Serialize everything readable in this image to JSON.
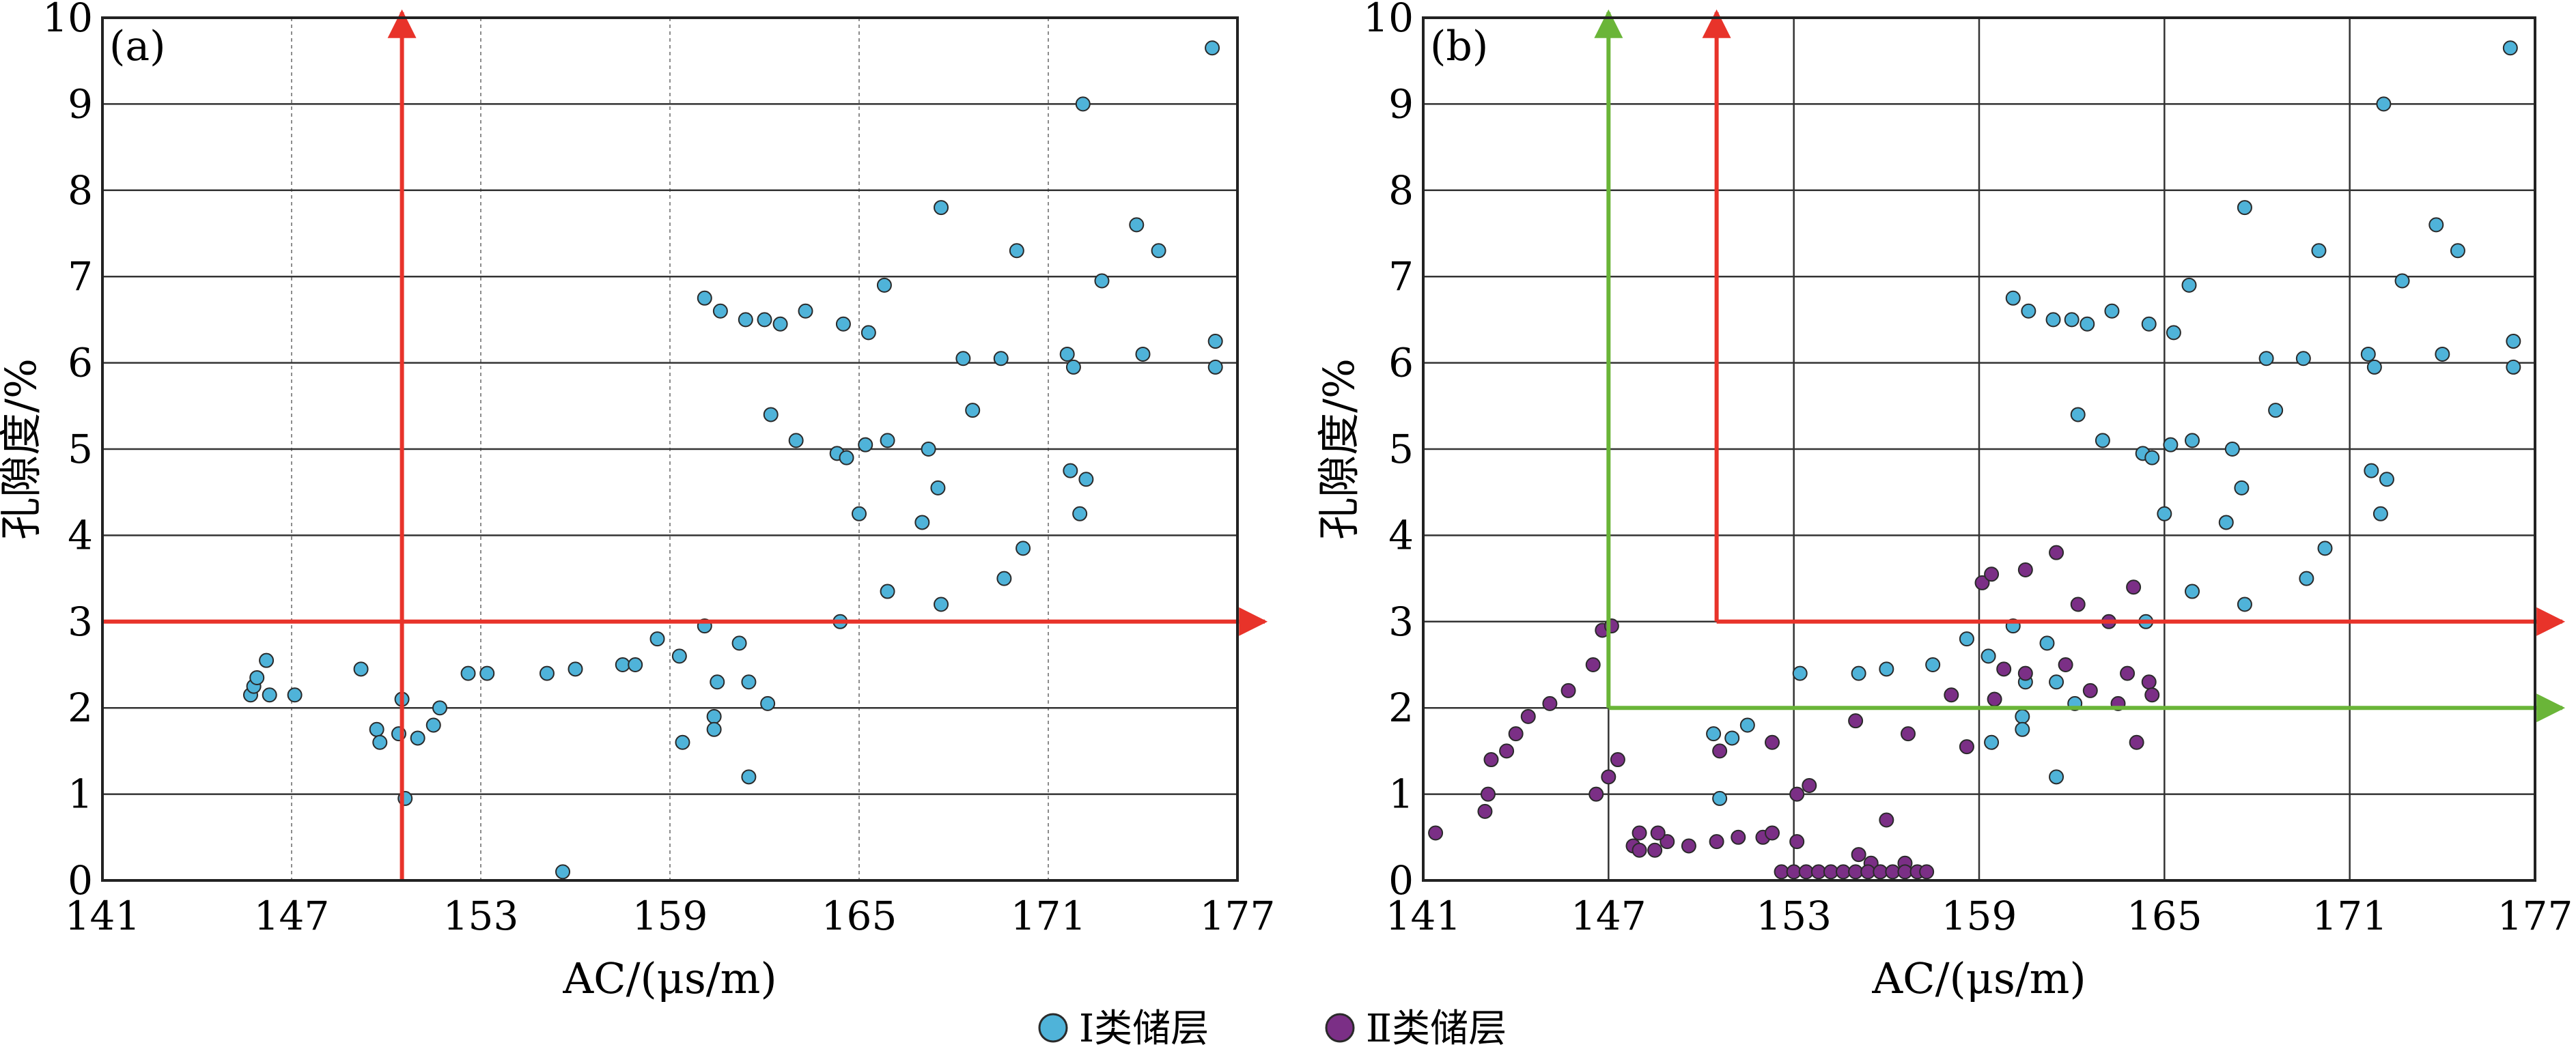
{
  "colors": {
    "type1_fill": "#4fb3d9",
    "type2_fill": "#7b2f86",
    "point_edge": "#2a2a2a",
    "red_line": "#e8332a",
    "green_line": "#6ab538",
    "grid_major": "#333333",
    "grid_minor": "#8c8c8c"
  },
  "legend": {
    "type1_label": "Ⅰ类储层",
    "type2_label": "Ⅱ类储层"
  },
  "chart_data": [
    {
      "type": "scatter",
      "panel_label": "(a)",
      "xlabel": "AC/(μs/m)",
      "ylabel": "孔隙度/%",
      "xlim": [
        141,
        177
      ],
      "ylim": [
        0,
        10
      ],
      "xticks": [
        "141",
        "147",
        "153",
        "159",
        "165",
        "171",
        "177"
      ],
      "yticks": [
        "0",
        "1",
        "2",
        "3",
        "4",
        "5",
        "6",
        "7",
        "8",
        "9",
        "10"
      ],
      "grid": "vertical dotted at x ticks, horizontal solid at y ticks",
      "cutoff_lines": [
        {
          "color": "red",
          "orientation": "vertical",
          "x": 150.5
        },
        {
          "color": "red",
          "orientation": "horizontal",
          "y": 3.0
        }
      ],
      "series": [
        {
          "name": "Ⅰ类储层",
          "points": [
            [
              176.2,
              9.65
            ],
            [
              172.1,
              9.0
            ],
            [
              167.6,
              7.8
            ],
            [
              173.8,
              7.6
            ],
            [
              174.5,
              7.3
            ],
            [
              170.0,
              7.3
            ],
            [
              172.7,
              6.95
            ],
            [
              165.8,
              6.9
            ],
            [
              160.1,
              6.75
            ],
            [
              160.6,
              6.6
            ],
            [
              163.3,
              6.6
            ],
            [
              161.4,
              6.5
            ],
            [
              162.0,
              6.5
            ],
            [
              162.5,
              6.45
            ],
            [
              164.5,
              6.45
            ],
            [
              165.3,
              6.35
            ],
            [
              176.3,
              6.25
            ],
            [
              171.6,
              6.1
            ],
            [
              168.3,
              6.05
            ],
            [
              169.5,
              6.05
            ],
            [
              174.0,
              6.1
            ],
            [
              171.8,
              5.95
            ],
            [
              176.3,
              5.95
            ],
            [
              168.6,
              5.45
            ],
            [
              165.9,
              5.1
            ],
            [
              165.2,
              5.05
            ],
            [
              167.2,
              5.0
            ],
            [
              162.2,
              5.4
            ],
            [
              163.0,
              5.1
            ],
            [
              164.3,
              4.95
            ],
            [
              167.5,
              4.55
            ],
            [
              164.6,
              4.9
            ],
            [
              165.0,
              4.25
            ],
            [
              171.7,
              4.75
            ],
            [
              172.2,
              4.65
            ],
            [
              167.0,
              4.15
            ],
            [
              172.0,
              4.25
            ],
            [
              170.2,
              3.85
            ],
            [
              169.6,
              3.5
            ],
            [
              165.9,
              3.35
            ],
            [
              167.6,
              3.2
            ],
            [
              164.4,
              3.0
            ],
            [
              160.1,
              2.95
            ],
            [
              161.2,
              2.75
            ],
            [
              160.5,
              2.3
            ],
            [
              161.5,
              2.3
            ],
            [
              162.1,
              2.05
            ],
            [
              160.4,
              1.9
            ],
            [
              160.4,
              1.75
            ],
            [
              159.4,
              1.6
            ],
            [
              161.5,
              1.2
            ],
            [
              155.6,
              0.1
            ],
            [
              150.6,
              0.95
            ],
            [
              150.4,
              1.7
            ],
            [
              150.5,
              2.1
            ],
            [
              149.7,
              1.75
            ],
            [
              149.8,
              1.6
            ],
            [
              151.0,
              1.65
            ],
            [
              151.5,
              1.8
            ],
            [
              151.7,
              2.0
            ],
            [
              146.3,
              2.15
            ],
            [
              145.7,
              2.15
            ],
            [
              145.8,
              2.25
            ],
            [
              145.9,
              2.35
            ],
            [
              147.1,
              2.15
            ],
            [
              146.2,
              2.55
            ],
            [
              149.2,
              2.45
            ],
            [
              152.6,
              2.4
            ],
            [
              153.2,
              2.4
            ],
            [
              155.1,
              2.4
            ],
            [
              156.0,
              2.45
            ],
            [
              157.5,
              2.5
            ],
            [
              157.9,
              2.5
            ],
            [
              158.6,
              2.8
            ],
            [
              159.3,
              2.6
            ]
          ]
        }
      ]
    },
    {
      "type": "scatter",
      "panel_label": "(b)",
      "xlabel": "AC/(μs/m)",
      "ylabel": "孔隙度/%",
      "xlim": [
        141,
        177
      ],
      "ylim": [
        0,
        10
      ],
      "xticks": [
        "141",
        "147",
        "153",
        "159",
        "165",
        "171",
        "177"
      ],
      "yticks": [
        "0",
        "1",
        "2",
        "3",
        "4",
        "5",
        "6",
        "7",
        "8",
        "9",
        "10"
      ],
      "grid": "solid at x ticks and y ticks",
      "cutoff_lines": [
        {
          "color": "red",
          "orientation": "vertical",
          "x": 150.5
        },
        {
          "color": "red",
          "orientation": "horizontal",
          "y": 3.0
        },
        {
          "color": "green",
          "orientation": "vertical",
          "x": 147.0
        },
        {
          "color": "green",
          "orientation": "horizontal",
          "y": 2.0
        }
      ],
      "series": [
        {
          "name": "Ⅰ类储层",
          "points": [
            [
              176.2,
              9.65
            ],
            [
              172.1,
              9.0
            ],
            [
              167.6,
              7.8
            ],
            [
              173.8,
              7.6
            ],
            [
              174.5,
              7.3
            ],
            [
              170.0,
              7.3
            ],
            [
              172.7,
              6.95
            ],
            [
              165.8,
              6.9
            ],
            [
              160.1,
              6.75
            ],
            [
              160.6,
              6.6
            ],
            [
              163.3,
              6.6
            ],
            [
              161.4,
              6.5
            ],
            [
              162.0,
              6.5
            ],
            [
              162.5,
              6.45
            ],
            [
              164.5,
              6.45
            ],
            [
              165.3,
              6.35
            ],
            [
              176.3,
              6.25
            ],
            [
              171.6,
              6.1
            ],
            [
              168.3,
              6.05
            ],
            [
              169.5,
              6.05
            ],
            [
              174.0,
              6.1
            ],
            [
              171.8,
              5.95
            ],
            [
              176.3,
              5.95
            ],
            [
              168.6,
              5.45
            ],
            [
              165.9,
              5.1
            ],
            [
              165.2,
              5.05
            ],
            [
              167.2,
              5.0
            ],
            [
              162.2,
              5.4
            ],
            [
              163.0,
              5.1
            ],
            [
              164.3,
              4.95
            ],
            [
              167.5,
              4.55
            ],
            [
              164.6,
              4.9
            ],
            [
              165.0,
              4.25
            ],
            [
              171.7,
              4.75
            ],
            [
              172.2,
              4.65
            ],
            [
              167.0,
              4.15
            ],
            [
              172.0,
              4.25
            ],
            [
              170.2,
              3.85
            ],
            [
              169.6,
              3.5
            ],
            [
              165.9,
              3.35
            ],
            [
              167.6,
              3.2
            ],
            [
              164.4,
              3.0
            ],
            [
              160.1,
              2.95
            ],
            [
              161.2,
              2.75
            ],
            [
              160.5,
              2.3
            ],
            [
              161.5,
              2.3
            ],
            [
              162.1,
              2.05
            ],
            [
              160.4,
              1.9
            ],
            [
              160.4,
              1.75
            ],
            [
              159.4,
              1.6
            ],
            [
              161.5,
              1.2
            ],
            [
              150.6,
              0.95
            ],
            [
              150.4,
              1.7
            ],
            [
              151.0,
              1.65
            ],
            [
              151.5,
              1.8
            ],
            [
              153.2,
              2.4
            ],
            [
              155.1,
              2.4
            ],
            [
              156.0,
              2.45
            ],
            [
              157.5,
              2.5
            ],
            [
              158.6,
              2.8
            ],
            [
              159.3,
              2.6
            ],
            [
              155.8,
              0.1
            ]
          ]
        },
        {
          "name": "Ⅱ类储层",
          "points": [
            [
              141.4,
              0.55
            ],
            [
              143.0,
              0.8
            ],
            [
              143.1,
              1.0
            ],
            [
              143.2,
              1.4
            ],
            [
              143.7,
              1.5
            ],
            [
              144.0,
              1.7
            ],
            [
              144.4,
              1.9
            ],
            [
              145.1,
              2.05
            ],
            [
              145.7,
              2.2
            ],
            [
              146.5,
              2.5
            ],
            [
              146.8,
              2.9
            ],
            [
              147.1,
              2.95
            ],
            [
              146.6,
              1.0
            ],
            [
              147.0,
              1.2
            ],
            [
              147.3,
              1.4
            ],
            [
              147.8,
              0.4
            ],
            [
              148.0,
              0.35
            ],
            [
              148.5,
              0.35
            ],
            [
              148.9,
              0.45
            ],
            [
              149.6,
              0.4
            ],
            [
              150.5,
              0.45
            ],
            [
              151.2,
              0.5
            ],
            [
              152.0,
              0.5
            ],
            [
              152.3,
              0.55
            ],
            [
              153.1,
              0.45
            ],
            [
              148.0,
              0.55
            ],
            [
              148.6,
              0.55
            ],
            [
              153.5,
              1.1
            ],
            [
              153.1,
              1.0
            ],
            [
              150.6,
              1.5
            ],
            [
              152.3,
              1.6
            ],
            [
              155.0,
              1.85
            ],
            [
              156.7,
              1.7
            ],
            [
              158.6,
              1.55
            ],
            [
              160.5,
              2.4
            ],
            [
              161.8,
              2.5
            ],
            [
              162.6,
              2.2
            ],
            [
              163.5,
              2.05
            ],
            [
              163.8,
              2.4
            ],
            [
              164.5,
              2.3
            ],
            [
              164.6,
              2.15
            ],
            [
              164.1,
              1.6
            ],
            [
              158.1,
              2.15
            ],
            [
              159.5,
              2.1
            ],
            [
              159.8,
              2.45
            ],
            [
              156.0,
              0.7
            ],
            [
              155.1,
              0.3
            ],
            [
              155.5,
              0.2
            ],
            [
              156.6,
              0.2
            ],
            [
              164.0,
              3.4
            ],
            [
              163.2,
              3.0
            ],
            [
              162.2,
              3.2
            ],
            [
              160.5,
              3.6
            ],
            [
              161.5,
              3.8
            ],
            [
              159.1,
              3.45
            ],
            [
              159.4,
              3.55
            ],
            [
              152.6,
              0.1
            ],
            [
              153.0,
              0.1
            ],
            [
              153.4,
              0.1
            ],
            [
              153.8,
              0.1
            ],
            [
              154.2,
              0.1
            ],
            [
              154.6,
              0.1
            ],
            [
              155.0,
              0.1
            ],
            [
              155.4,
              0.1
            ],
            [
              155.8,
              0.1
            ],
            [
              156.2,
              0.1
            ],
            [
              156.6,
              0.1
            ],
            [
              157.0,
              0.1
            ],
            [
              157.3,
              0.1
            ]
          ]
        }
      ]
    }
  ]
}
